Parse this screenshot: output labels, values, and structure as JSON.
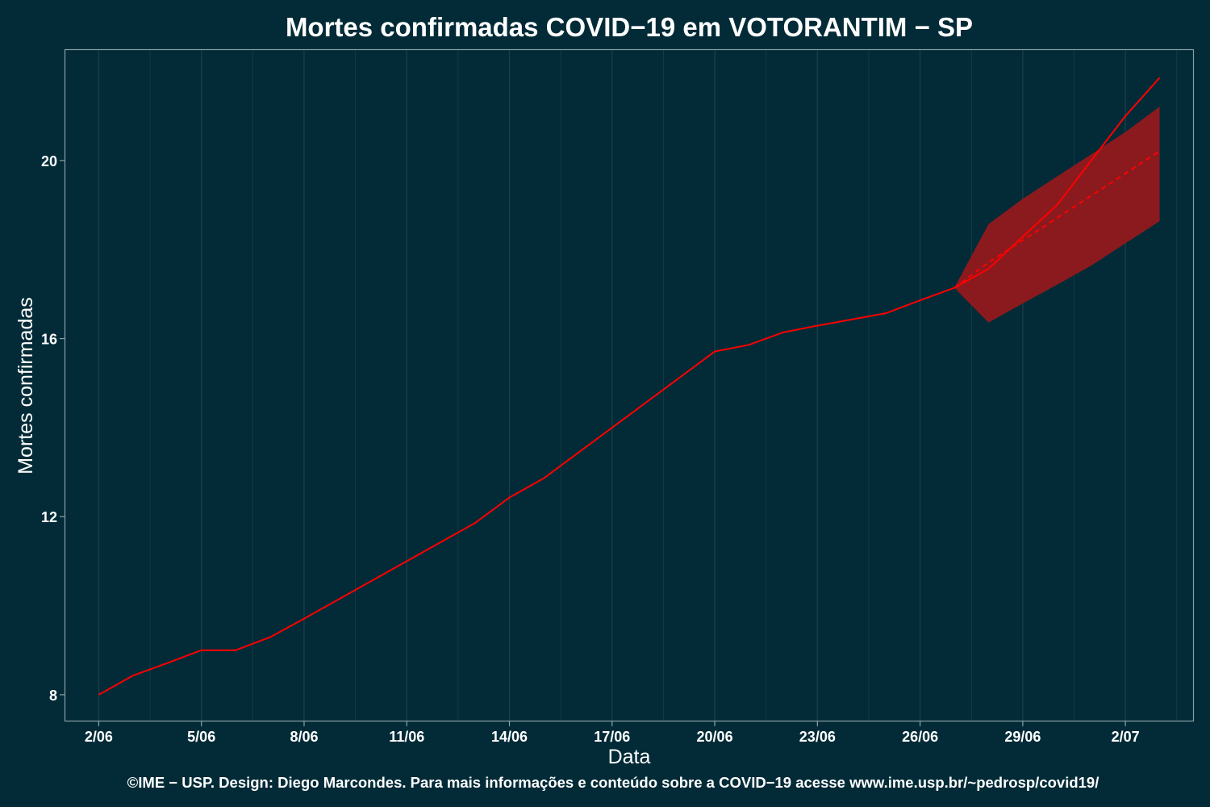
{
  "colors": {
    "background": "#022b37",
    "panel_border": "#8aa0a6",
    "grid_line": "#1b3c46",
    "series_line": "#ff0000",
    "ribbon_fill": "#8b1a1e",
    "text": "#ffffff"
  },
  "chart_data": {
    "type": "line",
    "title": "Mortes confirmadas COVID−19 em VOTORANTIM − SP",
    "xlabel": "Data",
    "ylabel": "Mortes confirmadas",
    "caption": "©IME − USP. Design: Diego Marcondes. Para mais informações e conteúdo sobre a COVID−19 acesse www.ime.usp.br/~pedrosp/covid19/",
    "x_type": "date",
    "x_range": [
      "2020-06-01",
      "2020-07-04"
    ],
    "y_range": [
      7.4,
      22.5
    ],
    "x_ticks": [
      {
        "date": "2020-06-02",
        "label": "2/06"
      },
      {
        "date": "2020-06-05",
        "label": "5/06"
      },
      {
        "date": "2020-06-08",
        "label": "8/06"
      },
      {
        "date": "2020-06-11",
        "label": "11/06"
      },
      {
        "date": "2020-06-14",
        "label": "14/06"
      },
      {
        "date": "2020-06-17",
        "label": "17/06"
      },
      {
        "date": "2020-06-20",
        "label": "20/06"
      },
      {
        "date": "2020-06-23",
        "label": "23/06"
      },
      {
        "date": "2020-06-26",
        "label": "26/06"
      },
      {
        "date": "2020-06-29",
        "label": "29/06"
      },
      {
        "date": "2020-07-02",
        "label": "2/07"
      }
    ],
    "y_ticks": [
      {
        "value": 8,
        "label": "8"
      },
      {
        "value": 12,
        "label": "12"
      },
      {
        "value": 16,
        "label": "16"
      },
      {
        "value": 20,
        "label": "20"
      }
    ],
    "grid": true,
    "legend": "none",
    "series": [
      {
        "style": "solid",
        "points": [
          {
            "x": "2020-06-02",
            "y": 8.0
          },
          {
            "x": "2020-06-03",
            "y": 8.43
          },
          {
            "x": "2020-06-04",
            "y": 8.71
          },
          {
            "x": "2020-06-05",
            "y": 9.0
          },
          {
            "x": "2020-06-06",
            "y": 9.0
          },
          {
            "x": "2020-06-07",
            "y": 9.29
          },
          {
            "x": "2020-06-08",
            "y": 9.71
          },
          {
            "x": "2020-06-09",
            "y": 10.14
          },
          {
            "x": "2020-06-10",
            "y": 10.57
          },
          {
            "x": "2020-06-11",
            "y": 11.0
          },
          {
            "x": "2020-06-12",
            "y": 11.43
          },
          {
            "x": "2020-06-13",
            "y": 11.86
          },
          {
            "x": "2020-06-14",
            "y": 12.43
          },
          {
            "x": "2020-06-15",
            "y": 12.86
          },
          {
            "x": "2020-06-16",
            "y": 13.43
          },
          {
            "x": "2020-06-17",
            "y": 14.0
          },
          {
            "x": "2020-06-18",
            "y": 14.57
          },
          {
            "x": "2020-06-19",
            "y": 15.14
          },
          {
            "x": "2020-06-20",
            "y": 15.71
          },
          {
            "x": "2020-06-21",
            "y": 15.86
          },
          {
            "x": "2020-06-22",
            "y": 16.14
          },
          {
            "x": "2020-06-23",
            "y": 16.29
          },
          {
            "x": "2020-06-24",
            "y": 16.43
          },
          {
            "x": "2020-06-25",
            "y": 16.57
          },
          {
            "x": "2020-06-26",
            "y": 16.86
          },
          {
            "x": "2020-06-27",
            "y": 17.14
          },
          {
            "x": "2020-06-28",
            "y": 17.57
          },
          {
            "x": "2020-06-29",
            "y": 18.29
          },
          {
            "x": "2020-06-30",
            "y": 19.0
          },
          {
            "x": "2020-07-01",
            "y": 20.0
          },
          {
            "x": "2020-07-02",
            "y": 21.0
          },
          {
            "x": "2020-07-03",
            "y": 21.86
          }
        ]
      },
      {
        "style": "dashed",
        "points": [
          {
            "x": "2020-06-27",
            "y": 17.14
          },
          {
            "x": "2020-06-28",
            "y": 17.71
          },
          {
            "x": "2020-06-29",
            "y": 18.21
          },
          {
            "x": "2020-06-30",
            "y": 18.71
          },
          {
            "x": "2020-07-01",
            "y": 19.21
          },
          {
            "x": "2020-07-02",
            "y": 19.71
          },
          {
            "x": "2020-07-03",
            "y": 20.21
          }
        ]
      }
    ],
    "band": {
      "points": [
        {
          "x": "2020-06-27",
          "lower": 17.14,
          "upper": 17.14
        },
        {
          "x": "2020-06-28",
          "lower": 16.36,
          "upper": 18.57
        },
        {
          "x": "2020-06-29",
          "lower": 16.79,
          "upper": 19.14
        },
        {
          "x": "2020-06-30",
          "lower": 17.21,
          "upper": 19.64
        },
        {
          "x": "2020-07-01",
          "lower": 17.64,
          "upper": 20.14
        },
        {
          "x": "2020-07-02",
          "lower": 18.14,
          "upper": 20.64
        },
        {
          "x": "2020-07-03",
          "lower": 18.64,
          "upper": 21.21
        }
      ]
    }
  }
}
